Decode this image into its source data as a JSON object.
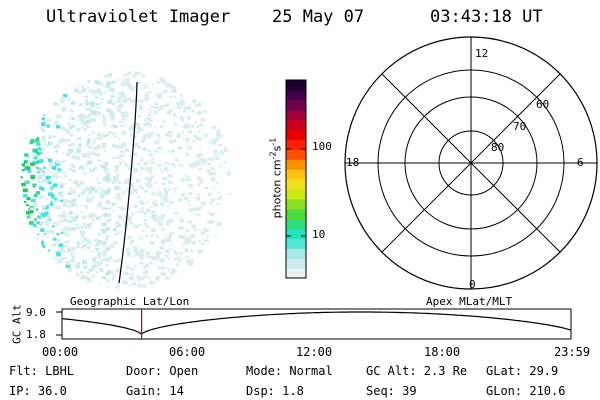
{
  "header": {
    "instrument": "Ultraviolet Imager",
    "date": "25 May 07",
    "time": "03:43:18 UT"
  },
  "colorbar": {
    "unit_label_main": "photon cm",
    "unit_label_sup1": "-2",
    "unit_label_mid": "s",
    "unit_label_sup2": "-1",
    "ticks": [
      {
        "label": "100",
        "value": 100
      },
      {
        "label": "10",
        "value": 10
      }
    ],
    "palette": [
      "#e6f2f2",
      "#ccecec",
      "#a8e8e8",
      "#55e6d8",
      "#22e0c0",
      "#2edc7a",
      "#4cdc3a",
      "#8ae020",
      "#c8e818",
      "#f0e020",
      "#ffc010",
      "#ff9000",
      "#ff5000",
      "#ff2000",
      "#e60000",
      "#c8001e",
      "#a0003a",
      "#6e0050",
      "#40004a",
      "#1a0030"
    ]
  },
  "polar": {
    "mlt_labels": [
      {
        "label": "12",
        "pos": "top"
      },
      {
        "label": "18",
        "pos": "left"
      },
      {
        "label": "6",
        "pos": "right"
      },
      {
        "label": "0",
        "pos": "bottom"
      }
    ],
    "lat_labels": [
      "60",
      "70",
      "80"
    ]
  },
  "timeline": {
    "left_title": "Geographic Lat/Lon",
    "right_title": "Apex MLat/MLT",
    "ylabel": "GC Alt",
    "ytick_top": "9.0",
    "ytick_bottom": "1.8",
    "xticks": [
      "00:00",
      "06:00",
      "12:00",
      "18:00",
      "23:59"
    ],
    "marker_time_frac": 0.1563,
    "marker_color": "#cc0000"
  },
  "status": {
    "filter": "Flt: LBHL",
    "door": "Door: Open",
    "mode": "Mode: Normal",
    "gc_alt": "GC Alt: 2.3 Re",
    "glat": "GLat:  29.9",
    "ip": "IP: 36.0",
    "gain": "Gain: 14",
    "dsp": "Dsp:    1.8",
    "seq": "Seq: 39",
    "glon": "GLon: 210.6"
  }
}
